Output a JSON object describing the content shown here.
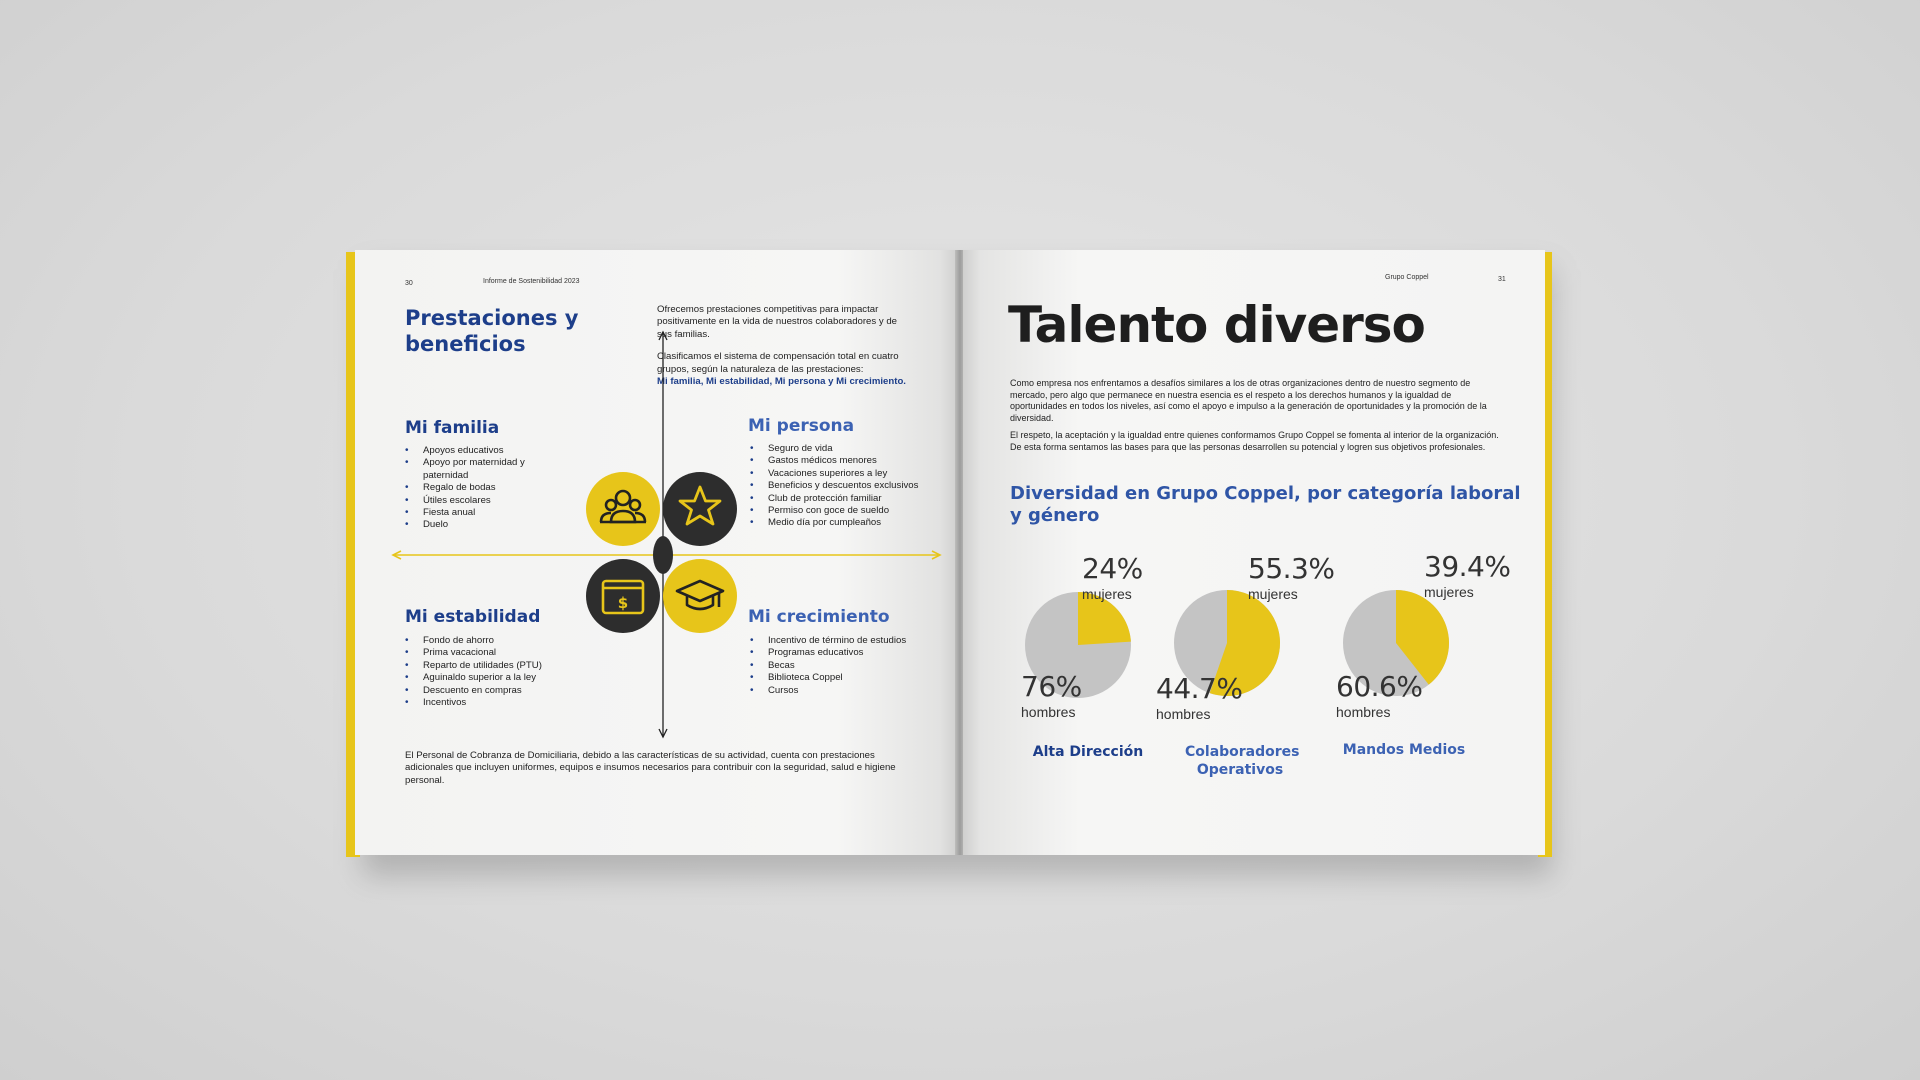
{
  "left_page": {
    "page_number": "30",
    "running_head": "Informe de Sostenibilidad 2023",
    "section_title_line1": "Prestaciones y",
    "section_title_line2": "beneficios",
    "intro_p1": "Ofrecemos prestaciones competitivas para impactar positivamente en la vida de nuestros colaboradores y de sus familias.",
    "intro_p2": "Clasificamos el sistema de compensación total en cuatro grupos, según la naturaleza de las prestaciones:",
    "intro_highlight": "Mi familia, Mi estabilidad, Mi persona y Mi crecimiento.",
    "groups": {
      "mi_familia": {
        "title": "Mi familia",
        "items": [
          "Apoyos educativos",
          "Apoyo por maternidad y paternidad",
          "Regalo de bodas",
          "Útiles escolares",
          "Fiesta anual",
          "Duelo"
        ]
      },
      "mi_persona": {
        "title": "Mi persona",
        "items": [
          "Seguro de vida",
          "Gastos médicos menores",
          "Vacaciones superiores a ley",
          "Beneficios y descuentos exclusivos",
          "Club de protección familiar",
          "Permiso con goce de sueldo",
          "Medio día por cumpleaños"
        ]
      },
      "mi_estabilidad": {
        "title": "Mi estabilidad",
        "items": [
          "Fondo de ahorro",
          "Prima vacacional",
          "Reparto de utilidades (PTU)",
          "Aguinaldo superior a la ley",
          "Descuento en compras",
          "Incentivos"
        ]
      },
      "mi_crecimiento": {
        "title": "Mi crecimiento",
        "items": [
          "Incentivo de término de estudios",
          "Programas educativos",
          "Becas",
          "Biblioteca Coppel",
          "Cursos"
        ]
      }
    },
    "icons": [
      "family-icon",
      "star-icon",
      "money-card-icon",
      "graduation-cap-icon"
    ],
    "footer_text": "El Personal de Cobranza de Domiciliaria, debido a las características de su actividad, cuenta con prestaciones adicionales que incluyen uniformes, equipos e insumos necesarios para contribuir con la seguridad, salud e higiene personal."
  },
  "right_page": {
    "running_head": "Grupo Coppel",
    "page_number": "31",
    "title": "Talento diverso",
    "p1": "Como empresa nos enfrentamos a desafíos similares a los de otras organizaciones dentro de nuestro segmento de mercado, pero algo que permanece en nuestra esencia es el respeto a los derechos humanos y la igualdad de oportunidades en todos los niveles, así como el apoyo e impulso a la generación de oportunidades y la promoción de la diversidad.",
    "p2": "El respeto, la aceptación y la igualdad entre quienes conformamos Grupo Coppel se fomenta al interior de la organización. De esta forma sentamos las bases para que las personas desarrollen su potencial y logren sus objetivos profesionales.",
    "chart_heading_line1": "Diversidad en Grupo Coppel, por categoría laboral",
    "chart_heading_line2": "y género"
  },
  "chart_data": {
    "type": "pie",
    "title": "Diversidad en Grupo Coppel, por categoría laboral y género",
    "series_labels": [
      "mujeres",
      "hombres"
    ],
    "colors": {
      "mujeres": "#e7c51a",
      "hombres": "#c4c4c4"
    },
    "charts": [
      {
        "category": "Alta Dirección",
        "mujeres": 24,
        "hombres": 76,
        "mujeres_label": "24%",
        "hombres_label": "76%",
        "category_color": "#1d3e8a"
      },
      {
        "category": "Colaboradores Operativos",
        "mujeres": 55.3,
        "hombres": 44.7,
        "mujeres_label": "55.3%",
        "hombres_label": "44.7%",
        "category_color": "#3c62b3"
      },
      {
        "category": "Mandos Medios",
        "mujeres": 39.4,
        "hombres": 60.6,
        "mujeres_label": "39.4%",
        "hombres_label": "60.6%",
        "category_color": "#3c62b3"
      }
    ]
  },
  "colors": {
    "accent_yellow": "#e7c51a",
    "brand_blue": "#1d3e8a",
    "light_blue": "#3c62b3",
    "dark_circle": "#2d2d2d"
  }
}
